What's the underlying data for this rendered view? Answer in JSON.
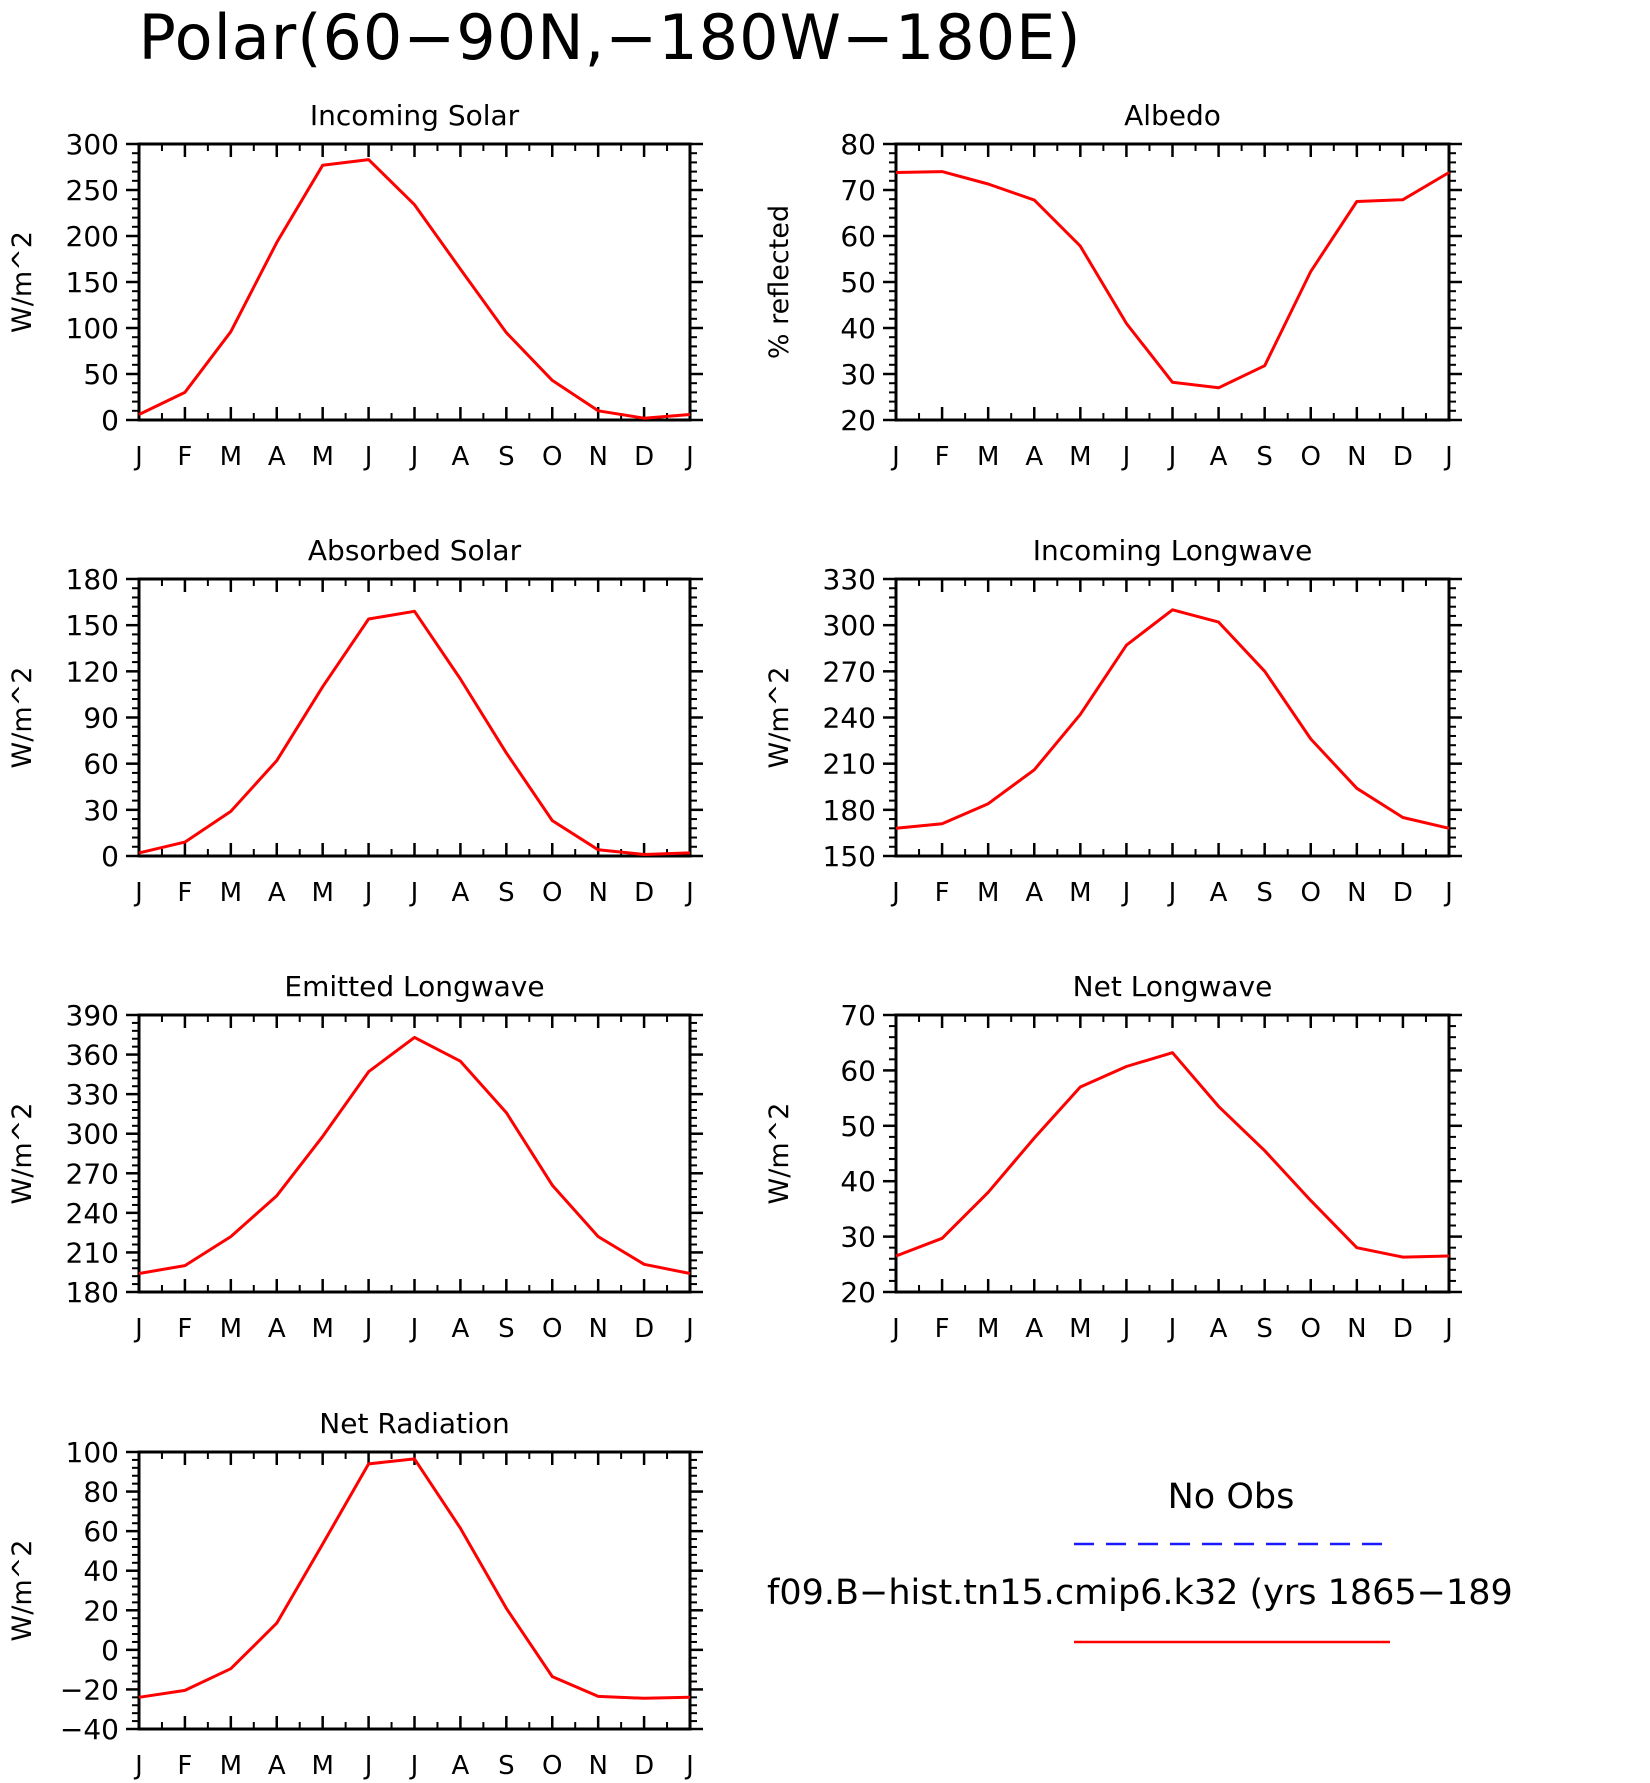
{
  "figure_title": "Polar(60−90N,−180W−180E)",
  "colors": {
    "model_line": "#ff0000",
    "obs_line": "#1a1aff",
    "axes": "#000000"
  },
  "legend": {
    "obs_label": "No Obs",
    "model_label": "f09.B−hist.tn15.cmip6.k32 (yrs 1865−189"
  },
  "chart_data": [
    {
      "type": "line",
      "title": "Incoming Solar",
      "ylabel": "W/m^2",
      "ylim": [
        0,
        300
      ],
      "yticks": [
        0,
        50,
        100,
        150,
        200,
        250,
        300
      ],
      "ytick_labels": [
        "0",
        "50",
        "100",
        "150",
        "200",
        "250",
        "300"
      ],
      "categories": [
        "J",
        "F",
        "M",
        "A",
        "M",
        "J",
        "J",
        "A",
        "S",
        "O",
        "N",
        "D",
        "J"
      ],
      "values": [
        6,
        30,
        96,
        193,
        277,
        283,
        234,
        164,
        95,
        43,
        10,
        2,
        6
      ]
    },
    {
      "type": "line",
      "title": "Albedo",
      "ylabel": "% reflected",
      "ylim": [
        20,
        80
      ],
      "yticks": [
        20,
        30,
        40,
        50,
        60,
        70,
        80
      ],
      "ytick_labels": [
        "20",
        "30",
        "40",
        "50",
        "60",
        "70",
        "80"
      ],
      "categories": [
        "J",
        "F",
        "M",
        "A",
        "M",
        "J",
        "J",
        "A",
        "S",
        "O",
        "N",
        "D",
        "J"
      ],
      "values": [
        73.8,
        74.0,
        71.3,
        67.8,
        57.8,
        41.0,
        28.2,
        27.0,
        31.8,
        52.3,
        67.5,
        67.9,
        73.8
      ]
    },
    {
      "type": "line",
      "title": "Absorbed Solar",
      "ylabel": "W/m^2",
      "ylim": [
        0,
        180
      ],
      "yticks": [
        0,
        30,
        60,
        90,
        120,
        150,
        180
      ],
      "ytick_labels": [
        "0",
        "30",
        "60",
        "90",
        "120",
        "150",
        "180"
      ],
      "categories": [
        "J",
        "F",
        "M",
        "A",
        "M",
        "J",
        "J",
        "A",
        "S",
        "O",
        "N",
        "D",
        "J"
      ],
      "values": [
        2,
        9,
        29,
        62,
        110,
        154,
        159,
        115,
        67,
        23,
        4,
        1,
        2
      ]
    },
    {
      "type": "line",
      "title": "Incoming Longwave",
      "ylabel": "W/m^2",
      "ylim": [
        150,
        330
      ],
      "yticks": [
        150,
        180,
        210,
        240,
        270,
        300,
        330
      ],
      "ytick_labels": [
        "150",
        "180",
        "210",
        "240",
        "270",
        "300",
        "330"
      ],
      "categories": [
        "J",
        "F",
        "M",
        "A",
        "M",
        "J",
        "J",
        "A",
        "S",
        "O",
        "N",
        "D",
        "J"
      ],
      "values": [
        168,
        171,
        184,
        206,
        242,
        287,
        310,
        302,
        270,
        226,
        194,
        175,
        168
      ]
    },
    {
      "type": "line",
      "title": "Emitted Longwave",
      "ylabel": "W/m^2",
      "ylim": [
        180,
        390
      ],
      "yticks": [
        180,
        210,
        240,
        270,
        300,
        330,
        360,
        390
      ],
      "ytick_labels": [
        "180",
        "210",
        "240",
        "270",
        "300",
        "330",
        "360",
        "390"
      ],
      "categories": [
        "J",
        "F",
        "M",
        "A",
        "M",
        "J",
        "J",
        "A",
        "S",
        "O",
        "N",
        "D",
        "J"
      ],
      "values": [
        194,
        200,
        222,
        253,
        298,
        347,
        373,
        355,
        316,
        261,
        222,
        201,
        194
      ]
    },
    {
      "type": "line",
      "title": "Net Longwave",
      "ylabel": "W/m^2",
      "ylim": [
        20,
        70
      ],
      "yticks": [
        20,
        30,
        40,
        50,
        60,
        70
      ],
      "ytick_labels": [
        "20",
        "30",
        "40",
        "50",
        "60",
        "70"
      ],
      "categories": [
        "J",
        "F",
        "M",
        "A",
        "M",
        "J",
        "J",
        "A",
        "S",
        "O",
        "N",
        "D",
        "J"
      ],
      "values": [
        26.5,
        29.7,
        38.0,
        47.8,
        57.0,
        60.7,
        63.2,
        53.5,
        45.5,
        36.5,
        28.0,
        26.3,
        26.5
      ]
    },
    {
      "type": "line",
      "title": "Net Radiation",
      "ylabel": "W/m^2",
      "ylim": [
        -40,
        100
      ],
      "yticks": [
        -40,
        -20,
        0,
        20,
        40,
        60,
        80,
        100
      ],
      "ytick_labels": [
        "−40",
        "−20",
        "0",
        "20",
        "40",
        "60",
        "80",
        "100"
      ],
      "categories": [
        "J",
        "F",
        "M",
        "A",
        "M",
        "J",
        "J",
        "A",
        "S",
        "O",
        "N",
        "D",
        "J"
      ],
      "values": [
        -24,
        -20.5,
        -9.5,
        13.5,
        53.5,
        94,
        96.5,
        61.5,
        21,
        -13.5,
        -23.5,
        -24.5,
        -24
      ]
    }
  ]
}
